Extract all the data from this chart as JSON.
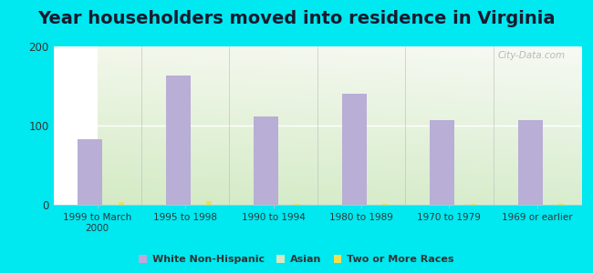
{
  "title": "Year householders moved into residence in Virginia",
  "categories": [
    "1999 to March\n2000",
    "1995 to 1998",
    "1990 to 1994",
    "1980 to 1989",
    "1970 to 1979",
    "1969 or earlier"
  ],
  "white_non_hispanic": [
    83,
    163,
    112,
    140,
    107,
    107
  ],
  "asian": [
    3,
    3,
    1,
    1,
    1,
    1
  ],
  "two_or_more": [
    4,
    5,
    1,
    1,
    1,
    1
  ],
  "bar_color_white": "#b8aed6",
  "bar_color_asian": "#d8e8c0",
  "bar_color_two": "#f0e050",
  "ylim": [
    0,
    200
  ],
  "yticks": [
    0,
    100,
    200
  ],
  "background_outer": "#00e8f0",
  "watermark": "City-Data.com",
  "legend_labels": [
    "White Non-Hispanic",
    "Asian",
    "Two or More Races"
  ],
  "legend_colors": [
    "#c0a8d8",
    "#d8e8c0",
    "#f0e050"
  ],
  "title_fontsize": 14
}
